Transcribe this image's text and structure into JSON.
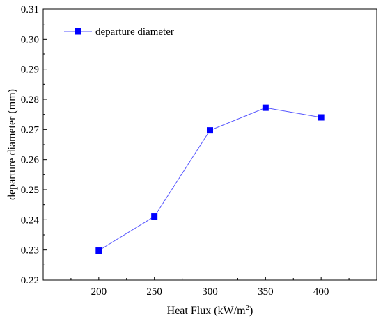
{
  "chart_data": {
    "type": "line",
    "xlabel": "Heat Flux (kW/m",
    "xlabel_sup": "2",
    "xlabel_tail": ")",
    "ylabel": "departure diameter (mm)",
    "xlim": [
      150,
      450
    ],
    "ylim": [
      0.22,
      0.31
    ],
    "x_ticks": [
      200,
      250,
      300,
      350,
      400
    ],
    "x_tick_labels": [
      "200",
      "250",
      "300",
      "350",
      "400"
    ],
    "y_ticks": [
      0.22,
      0.23,
      0.24,
      0.25,
      0.26,
      0.27,
      0.28,
      0.29,
      0.3,
      0.31
    ],
    "y_tick_labels": [
      "0.22",
      "0.23",
      "0.24",
      "0.25",
      "0.26",
      "0.27",
      "0.28",
      "0.29",
      "0.30",
      "0.31"
    ],
    "grid": false,
    "legend_position": "top-left",
    "series": [
      {
        "name": "departure diameter",
        "color": "#0000ff",
        "line_color": "#5555ff",
        "marker": "square",
        "x": [
          200,
          250,
          300,
          350,
          400
        ],
        "y": [
          0.2298,
          0.2411,
          0.2697,
          0.2772,
          0.274
        ]
      }
    ]
  }
}
